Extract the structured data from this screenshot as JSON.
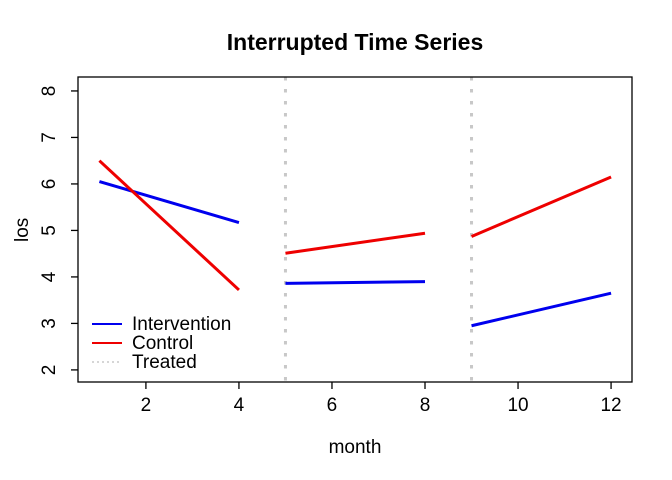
{
  "figure": {
    "title": "Interrupted Time Series",
    "xlabel": "month",
    "ylabel": "los"
  },
  "chart_data": {
    "type": "line",
    "title": "Interrupted Time Series",
    "xlabel": "month",
    "ylabel": "los",
    "x_ticks": [
      2,
      4,
      6,
      8,
      10,
      12
    ],
    "y_ticks": [
      2,
      3,
      4,
      5,
      6,
      7,
      8
    ],
    "xlim": [
      0.54,
      12.45
    ],
    "ylim": [
      1.74,
      8.3
    ],
    "grid": false,
    "frame_color": "#000000",
    "series": [
      {
        "name": "Intervention",
        "color": "#0000ee",
        "style": "solid",
        "segments": [
          {
            "x": [
              1,
              4
            ],
            "y": [
              6.05,
              5.17
            ]
          },
          {
            "x": [
              5,
              8
            ],
            "y": [
              3.86,
              3.9
            ]
          },
          {
            "x": [
              9,
              12
            ],
            "y": [
              2.95,
              3.65
            ]
          }
        ]
      },
      {
        "name": "Control",
        "color": "#ee0000",
        "style": "solid",
        "segments": [
          {
            "x": [
              1,
              4
            ],
            "y": [
              6.5,
              3.72
            ]
          },
          {
            "x": [
              5,
              8
            ],
            "y": [
              4.51,
              4.94
            ]
          },
          {
            "x": [
              9,
              12
            ],
            "y": [
              4.87,
              6.15
            ]
          }
        ]
      }
    ],
    "treatment_lines": {
      "name": "Treated",
      "x": [
        5,
        9
      ],
      "color": "#c8c8c8",
      "style": "dotted"
    },
    "legend": {
      "position": "bottom-left",
      "entries": [
        {
          "label": "Intervention",
          "color": "#0000ee",
          "style": "solid"
        },
        {
          "label": "Control",
          "color": "#ee0000",
          "style": "solid"
        },
        {
          "label": "Treated",
          "color": "#c8c8c8",
          "style": "dotted"
        }
      ]
    }
  }
}
